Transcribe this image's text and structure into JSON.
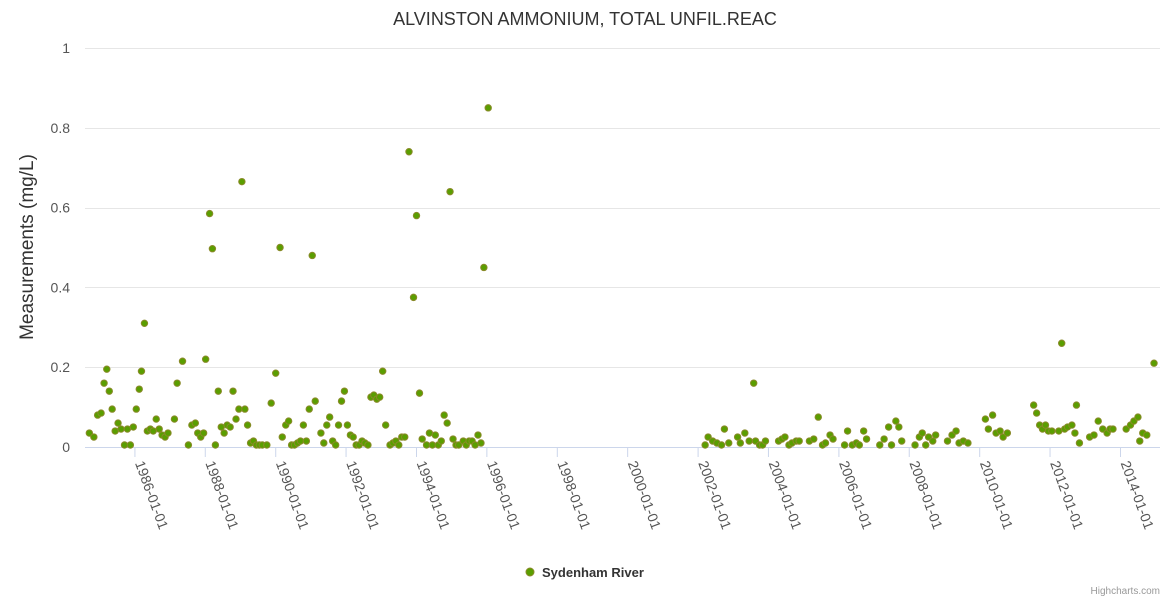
{
  "chart_data": {
    "type": "scatter",
    "title": "ALVINSTON AMMONIUM, TOTAL UNFIL.REAC",
    "ylabel": "Measurements (mg/L)",
    "xlabel": "",
    "xlim": [
      "1984-08-01",
      "2015-02-15"
    ],
    "ylim": [
      0,
      1
    ],
    "yticks": [
      "0",
      "0.2",
      "0.4",
      "0.6",
      "0.8",
      "1"
    ],
    "xticks": [
      "1986-01-01",
      "1988-01-01",
      "1990-01-01",
      "1992-01-01",
      "1994-01-01",
      "1996-01-01",
      "1998-01-01",
      "2000-01-01",
      "2002-01-01",
      "2004-01-01",
      "2006-01-01",
      "2008-01-01",
      "2010-01-01",
      "2012-01-01",
      "2014-01-01"
    ],
    "grid": true,
    "legend_position": "bottom-center",
    "series": [
      {
        "name": "Sydenham River",
        "color": "#5a9e00",
        "points": [
          [
            "1984-09-15",
            0.035
          ],
          [
            "1984-11-01",
            0.025
          ],
          [
            "1984-12-10",
            0.08
          ],
          [
            "1985-01-15",
            0.085
          ],
          [
            "1985-02-15",
            0.16
          ],
          [
            "1985-03-15",
            0.195
          ],
          [
            "1985-04-10",
            0.14
          ],
          [
            "1985-05-10",
            0.095
          ],
          [
            "1985-06-10",
            0.04
          ],
          [
            "1985-07-10",
            0.06
          ],
          [
            "1985-08-10",
            0.045
          ],
          [
            "1985-09-15",
            0.005
          ],
          [
            "1985-10-15",
            0.045
          ],
          [
            "1985-11-15",
            0.005
          ],
          [
            "1985-12-15",
            0.05
          ],
          [
            "1986-01-15",
            0.095
          ],
          [
            "1986-02-15",
            0.145
          ],
          [
            "1986-03-10",
            0.19
          ],
          [
            "1986-04-10",
            0.31
          ],
          [
            "1986-05-10",
            0.04
          ],
          [
            "1986-06-10",
            0.045
          ],
          [
            "1986-07-10",
            0.04
          ],
          [
            "1986-08-10",
            0.07
          ],
          [
            "1986-09-10",
            0.045
          ],
          [
            "1986-10-10",
            0.03
          ],
          [
            "1986-11-10",
            0.025
          ],
          [
            "1986-12-10",
            0.035
          ],
          [
            "1987-02-15",
            0.07
          ],
          [
            "1987-03-15",
            0.16
          ],
          [
            "1987-05-10",
            0.215
          ],
          [
            "1987-07-10",
            0.005
          ],
          [
            "1987-08-15",
            0.055
          ],
          [
            "1987-09-20",
            0.06
          ],
          [
            "1987-10-15",
            0.035
          ],
          [
            "1987-11-15",
            0.025
          ],
          [
            "1987-12-15",
            0.035
          ],
          [
            "1988-01-05",
            0.22
          ],
          [
            "1988-02-15",
            0.585
          ],
          [
            "1988-03-15",
            0.497
          ],
          [
            "1988-04-15",
            0.005
          ],
          [
            "1988-05-15",
            0.14
          ],
          [
            "1988-06-15",
            0.05
          ],
          [
            "1988-07-15",
            0.035
          ],
          [
            "1988-08-15",
            0.055
          ],
          [
            "1988-09-15",
            0.05
          ],
          [
            "1988-10-15",
            0.14
          ],
          [
            "1988-11-15",
            0.07
          ],
          [
            "1988-12-15",
            0.095
          ],
          [
            "1989-01-15",
            0.665
          ],
          [
            "1989-02-15",
            0.095
          ],
          [
            "1989-03-15",
            0.055
          ],
          [
            "1989-04-15",
            0.01
          ],
          [
            "1989-05-15",
            0.015
          ],
          [
            "1989-06-15",
            0.005
          ],
          [
            "1989-07-15",
            0.005
          ],
          [
            "1989-08-15",
            0.005
          ],
          [
            "1989-10-01",
            0.005
          ],
          [
            "1989-11-15",
            0.11
          ],
          [
            "1990-01-01",
            0.185
          ],
          [
            "1990-02-15",
            0.5
          ],
          [
            "1990-03-10",
            0.025
          ],
          [
            "1990-04-15",
            0.055
          ],
          [
            "1990-05-15",
            0.065
          ],
          [
            "1990-06-15",
            0.005
          ],
          [
            "1990-07-15",
            0.005
          ],
          [
            "1990-08-15",
            0.01
          ],
          [
            "1990-09-15",
            0.015
          ],
          [
            "1990-10-15",
            0.055
          ],
          [
            "1990-11-15",
            0.015
          ],
          [
            "1990-12-15",
            0.095
          ],
          [
            "1991-01-15",
            0.48
          ],
          [
            "1991-02-15",
            0.115
          ],
          [
            "1991-04-15",
            0.035
          ],
          [
            "1991-05-15",
            0.01
          ],
          [
            "1991-06-15",
            0.055
          ],
          [
            "1991-07-15",
            0.075
          ],
          [
            "1991-08-15",
            0.015
          ],
          [
            "1991-09-15",
            0.005
          ],
          [
            "1991-10-15",
            0.055
          ],
          [
            "1991-11-15",
            0.115
          ],
          [
            "1991-12-15",
            0.14
          ],
          [
            "1992-01-15",
            0.055
          ],
          [
            "1992-02-15",
            0.03
          ],
          [
            "1992-03-15",
            0.025
          ],
          [
            "1992-04-15",
            0.005
          ],
          [
            "1992-05-15",
            0.005
          ],
          [
            "1992-06-15",
            0.015
          ],
          [
            "1992-07-15",
            0.01
          ],
          [
            "1992-08-15",
            0.005
          ],
          [
            "1992-09-15",
            0.125
          ],
          [
            "1992-10-15",
            0.13
          ],
          [
            "1992-11-15",
            0.12
          ],
          [
            "1992-12-15",
            0.125
          ],
          [
            "1993-01-15",
            0.19
          ],
          [
            "1993-02-15",
            0.055
          ],
          [
            "1993-04-01",
            0.005
          ],
          [
            "1993-05-01",
            0.01
          ],
          [
            "1993-06-01",
            0.015
          ],
          [
            "1993-07-01",
            0.005
          ],
          [
            "1993-08-01",
            0.025
          ],
          [
            "1993-09-01",
            0.025
          ],
          [
            "1993-10-15",
            0.74
          ],
          [
            "1993-12-01",
            0.375
          ],
          [
            "1994-01-01",
            0.58
          ],
          [
            "1994-02-01",
            0.135
          ],
          [
            "1994-03-01",
            0.02
          ],
          [
            "1994-04-15",
            0.005
          ],
          [
            "1994-05-15",
            0.035
          ],
          [
            "1994-06-15",
            0.005
          ],
          [
            "1994-07-15",
            0.03
          ],
          [
            "1994-08-15",
            0.005
          ],
          [
            "1994-09-15",
            0.015
          ],
          [
            "1994-10-15",
            0.08
          ],
          [
            "1994-11-15",
            0.06
          ],
          [
            "1994-12-15",
            0.64
          ],
          [
            "1995-01-15",
            0.02
          ],
          [
            "1995-02-15",
            0.005
          ],
          [
            "1995-03-15",
            0.005
          ],
          [
            "1995-05-01",
            0.015
          ],
          [
            "1995-06-01",
            0.005
          ],
          [
            "1995-07-01",
            0.015
          ],
          [
            "1995-08-01",
            0.015
          ],
          [
            "1995-09-01",
            0.005
          ],
          [
            "1995-10-01",
            0.03
          ],
          [
            "1995-11-01",
            0.01
          ],
          [
            "1995-12-01",
            0.45
          ],
          [
            "1996-01-15",
            0.85
          ],
          [
            "2002-03-15",
            0.005
          ],
          [
            "2002-04-15",
            0.025
          ],
          [
            "2002-06-01",
            0.015
          ],
          [
            "2002-07-15",
            0.01
          ],
          [
            "2002-09-01",
            0.005
          ],
          [
            "2002-10-01",
            0.045
          ],
          [
            "2002-11-15",
            0.01
          ],
          [
            "2003-02-15",
            0.025
          ],
          [
            "2003-03-15",
            0.01
          ],
          [
            "2003-05-01",
            0.035
          ],
          [
            "2003-06-15",
            0.015
          ],
          [
            "2003-08-01",
            0.16
          ],
          [
            "2003-08-20",
            0.015
          ],
          [
            "2003-10-01",
            0.005
          ],
          [
            "2003-11-01",
            0.005
          ],
          [
            "2003-12-01",
            0.015
          ],
          [
            "2004-04-15",
            0.015
          ],
          [
            "2004-05-20",
            0.02
          ],
          [
            "2004-06-20",
            0.025
          ],
          [
            "2004-08-01",
            0.005
          ],
          [
            "2004-09-01",
            0.01
          ],
          [
            "2004-10-15",
            0.015
          ],
          [
            "2004-11-15",
            0.015
          ],
          [
            "2005-03-01",
            0.015
          ],
          [
            "2005-04-15",
            0.02
          ],
          [
            "2005-06-01",
            0.075
          ],
          [
            "2005-07-15",
            0.005
          ],
          [
            "2005-08-15",
            0.01
          ],
          [
            "2005-10-01",
            0.03
          ],
          [
            "2005-11-01",
            0.02
          ],
          [
            "2006-03-01",
            0.005
          ],
          [
            "2006-04-01",
            0.04
          ],
          [
            "2006-05-20",
            0.005
          ],
          [
            "2006-07-01",
            0.01
          ],
          [
            "2006-08-01",
            0.005
          ],
          [
            "2006-09-15",
            0.04
          ],
          [
            "2006-10-15",
            0.02
          ],
          [
            "2007-03-01",
            0.005
          ],
          [
            "2007-04-15",
            0.02
          ],
          [
            "2007-06-01",
            0.05
          ],
          [
            "2007-07-01",
            0.005
          ],
          [
            "2007-08-15",
            0.065
          ],
          [
            "2007-09-15",
            0.05
          ],
          [
            "2007-10-15",
            0.015
          ],
          [
            "2008-03-01",
            0.005
          ],
          [
            "2008-04-15",
            0.025
          ],
          [
            "2008-05-15",
            0.035
          ],
          [
            "2008-06-20",
            0.005
          ],
          [
            "2008-07-20",
            0.025
          ],
          [
            "2008-09-01",
            0.015
          ],
          [
            "2008-10-01",
            0.03
          ],
          [
            "2009-02-01",
            0.015
          ],
          [
            "2009-03-20",
            0.03
          ],
          [
            "2009-05-01",
            0.04
          ],
          [
            "2009-06-01",
            0.01
          ],
          [
            "2009-07-15",
            0.015
          ],
          [
            "2009-09-01",
            0.01
          ],
          [
            "2010-03-01",
            0.07
          ],
          [
            "2010-04-01",
            0.045
          ],
          [
            "2010-05-15",
            0.08
          ],
          [
            "2010-06-20",
            0.035
          ],
          [
            "2010-08-01",
            0.04
          ],
          [
            "2010-09-01",
            0.025
          ],
          [
            "2010-10-15",
            0.035
          ],
          [
            "2011-07-15",
            0.105
          ],
          [
            "2011-08-15",
            0.085
          ],
          [
            "2011-09-15",
            0.055
          ],
          [
            "2011-10-15",
            0.045
          ],
          [
            "2011-11-15",
            0.055
          ],
          [
            "2011-12-15",
            0.04
          ],
          [
            "2012-01-20",
            0.04
          ],
          [
            "2012-04-01",
            0.04
          ],
          [
            "2012-05-01",
            0.26
          ],
          [
            "2012-06-01",
            0.045
          ],
          [
            "2012-07-01",
            0.05
          ],
          [
            "2012-08-15",
            0.055
          ],
          [
            "2012-09-15",
            0.035
          ],
          [
            "2012-10-01",
            0.105
          ],
          [
            "2012-11-01",
            0.01
          ],
          [
            "2013-02-15",
            0.025
          ],
          [
            "2013-04-01",
            0.03
          ],
          [
            "2013-05-15",
            0.065
          ],
          [
            "2013-07-01",
            0.045
          ],
          [
            "2013-08-15",
            0.035
          ],
          [
            "2013-09-15",
            0.045
          ],
          [
            "2013-10-15",
            0.045
          ],
          [
            "2014-03-01",
            0.045
          ],
          [
            "2014-04-15",
            0.055
          ],
          [
            "2014-05-20",
            0.065
          ],
          [
            "2014-07-01",
            0.075
          ],
          [
            "2014-07-20",
            0.015
          ],
          [
            "2014-08-20",
            0.035
          ],
          [
            "2014-10-01",
            0.03
          ],
          [
            "2014-12-15",
            0.21
          ]
        ]
      }
    ]
  },
  "credit": "Highcharts.com"
}
